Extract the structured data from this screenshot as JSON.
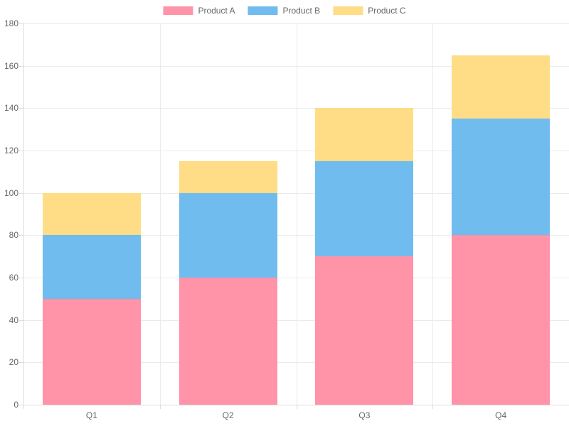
{
  "chart_data": {
    "type": "bar",
    "stacked": true,
    "title": "",
    "xlabel": "",
    "ylabel": "",
    "categories": [
      "Q1",
      "Q2",
      "Q3",
      "Q4"
    ],
    "series": [
      {
        "name": "Product A",
        "color": "#FF93A7",
        "values": [
          50,
          60,
          70,
          80
        ]
      },
      {
        "name": "Product B",
        "color": "#70BCEE",
        "values": [
          30,
          40,
          45,
          55
        ]
      },
      {
        "name": "Product C",
        "color": "#FFDC86",
        "values": [
          20,
          15,
          25,
          30
        ]
      }
    ],
    "ylim": [
      0,
      180
    ],
    "yticks": [
      0,
      20,
      40,
      60,
      80,
      100,
      120,
      140,
      160,
      180
    ],
    "grid": true,
    "legend_position": "top"
  },
  "theme": {
    "background": "#ffffff",
    "text_color": "#666666",
    "grid_color": "#ebebeb",
    "axis_color": "#dddddd"
  }
}
